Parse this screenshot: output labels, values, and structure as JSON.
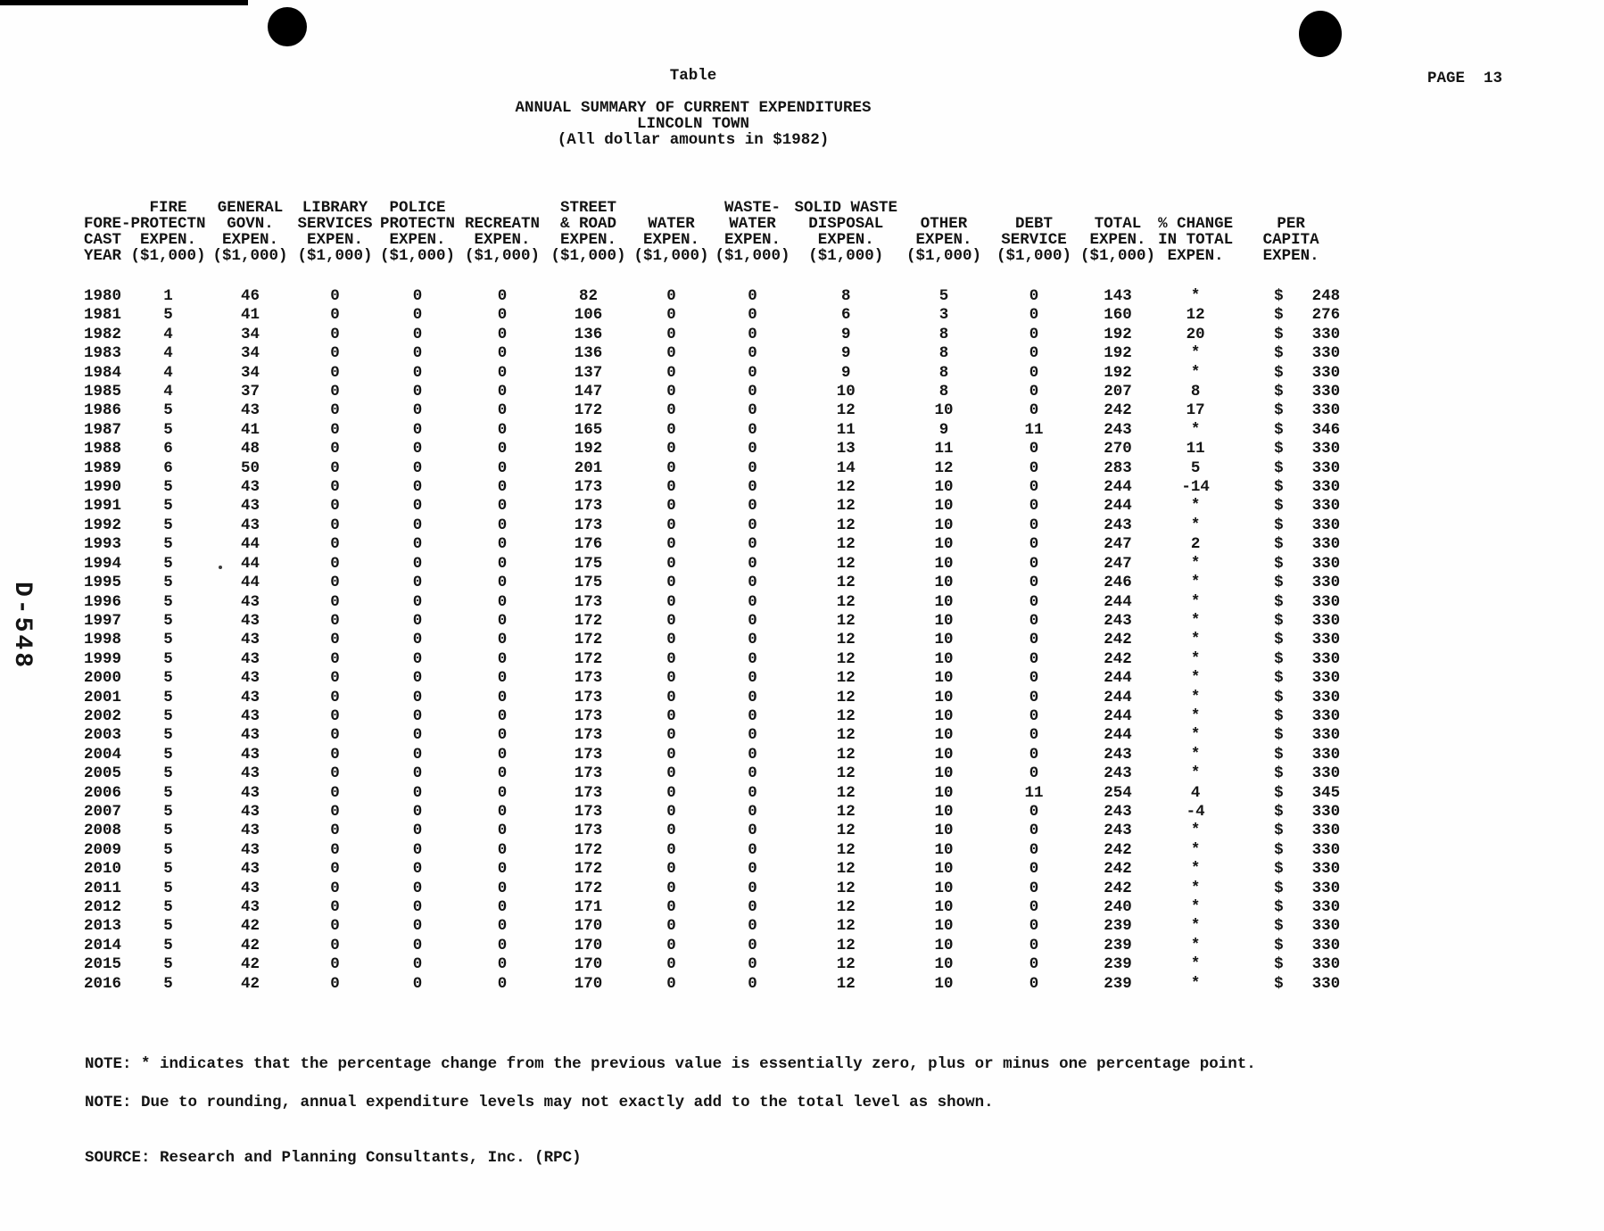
{
  "page": {
    "table_label": "Table",
    "page_label": "PAGE  13",
    "side_label": "D-548",
    "currency_symbol": "$",
    "note1": "NOTE: * indicates that the percentage change from the previous value is essentially zero, plus or minus one percentage point.",
    "note2": "NOTE: Due to rounding, annual expenditure levels may not exactly add to the total level as shown.",
    "source": "SOURCE: Research and Planning Consultants, Inc. (RPC)"
  },
  "chart_data": {
    "type": "table",
    "title": "ANNUAL SUMMARY OF CURRENT EXPENDITURES",
    "subtitle": "LINCOLN TOWN",
    "unit_note": "(All dollar amounts in $1982)",
    "columns": [
      {
        "id": "year",
        "lines": [
          "FORE-",
          "CAST",
          "YEAR"
        ]
      },
      {
        "id": "fire",
        "lines": [
          "FIRE",
          "PROTECTN",
          "EXPEN.",
          "($1,000)"
        ]
      },
      {
        "id": "general",
        "lines": [
          "GENERAL",
          "GOVN.",
          "EXPEN.",
          "($1,000)"
        ]
      },
      {
        "id": "library",
        "lines": [
          "LIBRARY",
          "SERVICES",
          "EXPEN.",
          "($1,000)"
        ]
      },
      {
        "id": "police",
        "lines": [
          "POLICE",
          "PROTECTN",
          "EXPEN.",
          "($1,000)"
        ]
      },
      {
        "id": "recreatn",
        "lines": [
          "RECREATN",
          "EXPEN.",
          "($1,000)"
        ]
      },
      {
        "id": "street",
        "lines": [
          "STREET",
          "& ROAD",
          "EXPEN.",
          "($1,000)"
        ]
      },
      {
        "id": "water",
        "lines": [
          "WATER",
          "EXPEN.",
          "($1,000)"
        ]
      },
      {
        "id": "wastewater",
        "lines": [
          "WASTE-",
          "WATER",
          "EXPEN.",
          "($1,000)"
        ]
      },
      {
        "id": "solid_waste",
        "lines": [
          "SOLID WASTE",
          "DISPOSAL",
          "EXPEN.",
          "($1,000)"
        ]
      },
      {
        "id": "other",
        "lines": [
          "OTHER",
          "EXPEN.",
          "($1,000)"
        ]
      },
      {
        "id": "debt",
        "lines": [
          "DEBT",
          "SERVICE",
          "($1,000)"
        ]
      },
      {
        "id": "total",
        "lines": [
          "TOTAL",
          "EXPEN.",
          "($1,000)"
        ]
      },
      {
        "id": "pct_change",
        "lines": [
          "% CHANGE",
          "IN TOTAL",
          "EXPEN."
        ]
      },
      {
        "id": "per_capita",
        "lines": [
          "PER",
          "CAPITA",
          "EXPEN."
        ]
      }
    ],
    "rows": [
      [
        "1980",
        "1",
        "46",
        "0",
        "0",
        "0",
        "82",
        "0",
        "0",
        "8",
        "5",
        "0",
        "143",
        "*",
        "248"
      ],
      [
        "1981",
        "5",
        "41",
        "0",
        "0",
        "0",
        "106",
        "0",
        "0",
        "6",
        "3",
        "0",
        "160",
        "12",
        "276"
      ],
      [
        "1982",
        "4",
        "34",
        "0",
        "0",
        "0",
        "136",
        "0",
        "0",
        "9",
        "8",
        "0",
        "192",
        "20",
        "330"
      ],
      [
        "1983",
        "4",
        "34",
        "0",
        "0",
        "0",
        "136",
        "0",
        "0",
        "9",
        "8",
        "0",
        "192",
        "*",
        "330"
      ],
      [
        "1984",
        "4",
        "34",
        "0",
        "0",
        "0",
        "137",
        "0",
        "0",
        "9",
        "8",
        "0",
        "192",
        "*",
        "330"
      ],
      [
        "1985",
        "4",
        "37",
        "0",
        "0",
        "0",
        "147",
        "0",
        "0",
        "10",
        "8",
        "0",
        "207",
        "8",
        "330"
      ],
      [
        "1986",
        "5",
        "43",
        "0",
        "0",
        "0",
        "172",
        "0",
        "0",
        "12",
        "10",
        "0",
        "242",
        "17",
        "330"
      ],
      [
        "1987",
        "5",
        "41",
        "0",
        "0",
        "0",
        "165",
        "0",
        "0",
        "11",
        "9",
        "11",
        "243",
        "*",
        "346"
      ],
      [
        "1988",
        "6",
        "48",
        "0",
        "0",
        "0",
        "192",
        "0",
        "0",
        "13",
        "11",
        "0",
        "270",
        "11",
        "330"
      ],
      [
        "1989",
        "6",
        "50",
        "0",
        "0",
        "0",
        "201",
        "0",
        "0",
        "14",
        "12",
        "0",
        "283",
        "5",
        "330"
      ],
      [
        "1990",
        "5",
        "43",
        "0",
        "0",
        "0",
        "173",
        "0",
        "0",
        "12",
        "10",
        "0",
        "244",
        "-14",
        "330"
      ],
      [
        "1991",
        "5",
        "43",
        "0",
        "0",
        "0",
        "173",
        "0",
        "0",
        "12",
        "10",
        "0",
        "244",
        "*",
        "330"
      ],
      [
        "1992",
        "5",
        "43",
        "0",
        "0",
        "0",
        "173",
        "0",
        "0",
        "12",
        "10",
        "0",
        "243",
        "*",
        "330"
      ],
      [
        "1993",
        "5",
        "44",
        "0",
        "0",
        "0",
        "176",
        "0",
        "0",
        "12",
        "10",
        "0",
        "247",
        "2",
        "330"
      ],
      [
        "1994",
        "5",
        "44",
        "0",
        "0",
        "0",
        "175",
        "0",
        "0",
        "12",
        "10",
        "0",
        "247",
        "*",
        "330"
      ],
      [
        "1995",
        "5",
        "44",
        "0",
        "0",
        "0",
        "175",
        "0",
        "0",
        "12",
        "10",
        "0",
        "246",
        "*",
        "330"
      ],
      [
        "1996",
        "5",
        "43",
        "0",
        "0",
        "0",
        "173",
        "0",
        "0",
        "12",
        "10",
        "0",
        "244",
        "*",
        "330"
      ],
      [
        "1997",
        "5",
        "43",
        "0",
        "0",
        "0",
        "172",
        "0",
        "0",
        "12",
        "10",
        "0",
        "243",
        "*",
        "330"
      ],
      [
        "1998",
        "5",
        "43",
        "0",
        "0",
        "0",
        "172",
        "0",
        "0",
        "12",
        "10",
        "0",
        "242",
        "*",
        "330"
      ],
      [
        "1999",
        "5",
        "43",
        "0",
        "0",
        "0",
        "172",
        "0",
        "0",
        "12",
        "10",
        "0",
        "242",
        "*",
        "330"
      ],
      [
        "2000",
        "5",
        "43",
        "0",
        "0",
        "0",
        "173",
        "0",
        "0",
        "12",
        "10",
        "0",
        "244",
        "*",
        "330"
      ],
      [
        "2001",
        "5",
        "43",
        "0",
        "0",
        "0",
        "173",
        "0",
        "0",
        "12",
        "10",
        "0",
        "244",
        "*",
        "330"
      ],
      [
        "2002",
        "5",
        "43",
        "0",
        "0",
        "0",
        "173",
        "0",
        "0",
        "12",
        "10",
        "0",
        "244",
        "*",
        "330"
      ],
      [
        "2003",
        "5",
        "43",
        "0",
        "0",
        "0",
        "173",
        "0",
        "0",
        "12",
        "10",
        "0",
        "244",
        "*",
        "330"
      ],
      [
        "2004",
        "5",
        "43",
        "0",
        "0",
        "0",
        "173",
        "0",
        "0",
        "12",
        "10",
        "0",
        "243",
        "*",
        "330"
      ],
      [
        "2005",
        "5",
        "43",
        "0",
        "0",
        "0",
        "173",
        "0",
        "0",
        "12",
        "10",
        "0",
        "243",
        "*",
        "330"
      ],
      [
        "2006",
        "5",
        "43",
        "0",
        "0",
        "0",
        "173",
        "0",
        "0",
        "12",
        "10",
        "11",
        "254",
        "4",
        "345"
      ],
      [
        "2007",
        "5",
        "43",
        "0",
        "0",
        "0",
        "173",
        "0",
        "0",
        "12",
        "10",
        "0",
        "243",
        "-4",
        "330"
      ],
      [
        "2008",
        "5",
        "43",
        "0",
        "0",
        "0",
        "173",
        "0",
        "0",
        "12",
        "10",
        "0",
        "243",
        "*",
        "330"
      ],
      [
        "2009",
        "5",
        "43",
        "0",
        "0",
        "0",
        "172",
        "0",
        "0",
        "12",
        "10",
        "0",
        "242",
        "*",
        "330"
      ],
      [
        "2010",
        "5",
        "43",
        "0",
        "0",
        "0",
        "172",
        "0",
        "0",
        "12",
        "10",
        "0",
        "242",
        "*",
        "330"
      ],
      [
        "2011",
        "5",
        "43",
        "0",
        "0",
        "0",
        "172",
        "0",
        "0",
        "12",
        "10",
        "0",
        "242",
        "*",
        "330"
      ],
      [
        "2012",
        "5",
        "43",
        "0",
        "0",
        "0",
        "171",
        "0",
        "0",
        "12",
        "10",
        "0",
        "240",
        "*",
        "330"
      ],
      [
        "2013",
        "5",
        "42",
        "0",
        "0",
        "0",
        "170",
        "0",
        "0",
        "12",
        "10",
        "0",
        "239",
        "*",
        "330"
      ],
      [
        "2014",
        "5",
        "42",
        "0",
        "0",
        "0",
        "170",
        "0",
        "0",
        "12",
        "10",
        "0",
        "239",
        "*",
        "330"
      ],
      [
        "2015",
        "5",
        "42",
        "0",
        "0",
        "0",
        "170",
        "0",
        "0",
        "12",
        "10",
        "0",
        "239",
        "*",
        "330"
      ],
      [
        "2016",
        "5",
        "42",
        "0",
        "0",
        "0",
        "170",
        "0",
        "0",
        "12",
        "10",
        "0",
        "239",
        "*",
        "330"
      ]
    ]
  }
}
